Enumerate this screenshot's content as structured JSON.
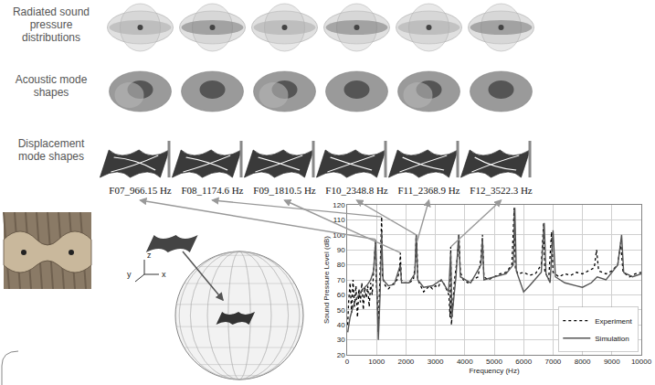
{
  "figure": {
    "row_labels": [
      "Radiated sound pressure distributions",
      "Acoustic mode shapes",
      "Displacement mode shapes"
    ],
    "modes": [
      {
        "label": "F07_966.15 Hz",
        "frequency": 966.15,
        "peak_spl": 97
      },
      {
        "label": "F08_1174.6 Hz",
        "frequency": 1174.6,
        "peak_spl": 112
      },
      {
        "label": "F09_1810.5 Hz",
        "frequency": 1810.5,
        "peak_spl": 88
      },
      {
        "label": "F10_2348.8 Hz",
        "frequency": 2348.8,
        "peak_spl": 100
      },
      {
        "label": "F11_2368.9 Hz",
        "frequency": 2368.9,
        "peak_spl": 95
      },
      {
        "label": "F12_3522.3 Hz",
        "frequency": 3522.3,
        "peak_spl": 92
      }
    ],
    "axis_icon_labels": [
      "x",
      "y",
      "z"
    ]
  },
  "chart_data": {
    "type": "line",
    "x_label": "Frequency (Hz)",
    "y_label": "Sound Pressure Level (dB)",
    "xlim": [
      0,
      10000
    ],
    "xticks": [
      0,
      1000,
      2000,
      3000,
      4000,
      5000,
      6000,
      7000,
      8000,
      9000,
      10000
    ],
    "ylim": [
      20,
      120
    ],
    "yticks": [
      20,
      30,
      40,
      50,
      60,
      70,
      80,
      90,
      100,
      110,
      120
    ],
    "grid": true,
    "legend": "lower right",
    "series": [
      {
        "name": "Experiment",
        "color": "#000000",
        "line_style": "dotted",
        "x": [
          20,
          50,
          100,
          150,
          200,
          250,
          300,
          350,
          400,
          450,
          500,
          550,
          600,
          650,
          700,
          750,
          800,
          850,
          900,
          940,
          966,
          990,
          1030,
          1060,
          1100,
          1150,
          1174,
          1200,
          1300,
          1400,
          1500,
          1600,
          1700,
          1780,
          1810,
          1840,
          1950,
          2100,
          2250,
          2320,
          2348,
          2360,
          2369,
          2400,
          2500,
          2600,
          2700,
          2800,
          2900,
          3000,
          3100,
          3200,
          3300,
          3400,
          3460,
          3500,
          3522,
          3545,
          3650,
          3750,
          3800,
          3850,
          3950,
          4100,
          4300,
          4450,
          4550,
          4600,
          4650,
          4800,
          5000,
          5200,
          5400,
          5600,
          5680,
          5720,
          5800,
          6000,
          6200,
          6400,
          6600,
          6680,
          6720,
          6850,
          6950,
          7000,
          7200,
          7400,
          7600,
          7800,
          8000,
          8200,
          8400,
          8480,
          8550,
          8800,
          9000,
          9200,
          9300,
          9380,
          9600,
          9800,
          10000
        ],
        "values": [
          40,
          55,
          68,
          48,
          70,
          52,
          66,
          45,
          64,
          55,
          68,
          50,
          65,
          58,
          66,
          52,
          68,
          60,
          75,
          85,
          97,
          70,
          55,
          35,
          60,
          95,
          112,
          72,
          66,
          64,
          66,
          68,
          70,
          76,
          88,
          70,
          68,
          68,
          70,
          80,
          100,
          85,
          95,
          70,
          66,
          62,
          64,
          66,
          64,
          66,
          65,
          70,
          67,
          62,
          60,
          45,
          92,
          40,
          70,
          85,
          100,
          75,
          70,
          68,
          70,
          72,
          85,
          100,
          72,
          70,
          72,
          74,
          75,
          80,
          118,
          78,
          74,
          75,
          73,
          74,
          80,
          108,
          76,
          70,
          102,
          75,
          72,
          74,
          73,
          75,
          74,
          76,
          78,
          90,
          76,
          74,
          76,
          80,
          95,
          75,
          72,
          74,
          75
        ]
      },
      {
        "name": "Simulation",
        "color": "#555555",
        "line_style": "solid",
        "x": [
          20,
          100,
          200,
          300,
          400,
          500,
          600,
          700,
          800,
          900,
          966,
          1000,
          1060,
          1120,
          1174,
          1220,
          1400,
          1600,
          1810,
          1850,
          2100,
          2300,
          2349,
          2400,
          2600,
          2900,
          3200,
          3450,
          3522,
          3560,
          3700,
          3790,
          3850,
          4200,
          4550,
          4600,
          4650,
          5000,
          5400,
          5650,
          5700,
          5750,
          6000,
          6200,
          6600,
          6700,
          6760,
          6900,
          7000,
          7080,
          7400,
          7800,
          8000,
          8300,
          8500,
          8800,
          9200,
          9330,
          9400,
          9700,
          10000
        ],
        "values": [
          35,
          45,
          52,
          57,
          60,
          63,
          65,
          67,
          70,
          76,
          96,
          70,
          30,
          60,
          102,
          70,
          66,
          67,
          80,
          68,
          68,
          74,
          100,
          70,
          65,
          66,
          70,
          62,
          88,
          45,
          72,
          100,
          72,
          68,
          80,
          98,
          70,
          72,
          74,
          80,
          118,
          76,
          62,
          66,
          75,
          108,
          74,
          68,
          103,
          72,
          68,
          66,
          65,
          68,
          72,
          70,
          80,
          100,
          75,
          72,
          74
        ]
      }
    ]
  }
}
